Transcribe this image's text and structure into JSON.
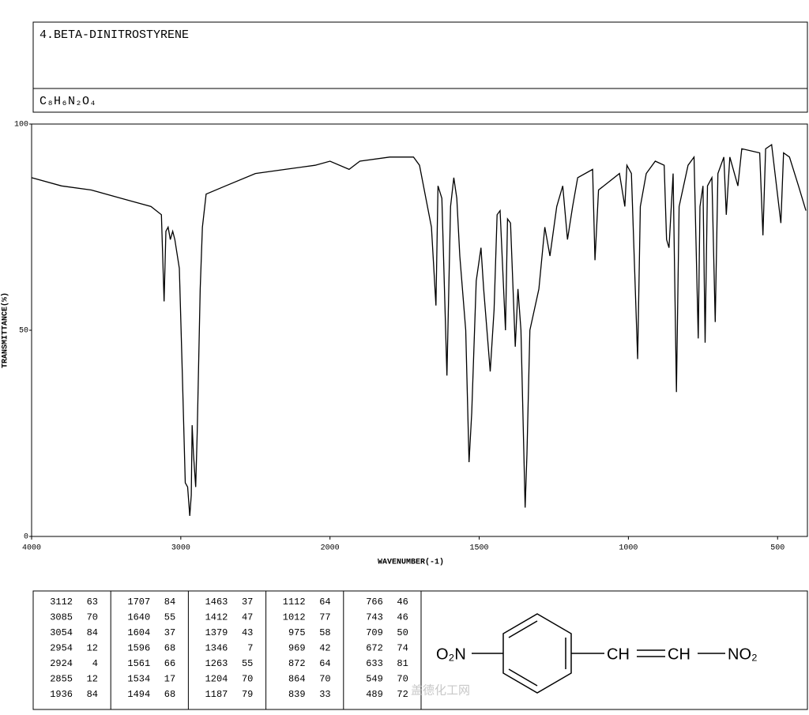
{
  "chart_data": {
    "type": "line",
    "title": "4.BETA-DINITROSTYRENE",
    "formula": "C₈H₆N₂O₄",
    "xlabel": "WAVENUMBER(-1)",
    "ylabel": "TRANSMITTANCE(%)",
    "color": "#000000",
    "xlim": [
      4000,
      400
    ],
    "xticks": [
      4000,
      3000,
      2000,
      1500,
      1000,
      500
    ],
    "ylim": [
      0,
      100
    ],
    "yticks": [
      0,
      50,
      100
    ],
    "x": [
      4000,
      3800,
      3600,
      3400,
      3200,
      3130,
      3112,
      3100,
      3085,
      3070,
      3054,
      3040,
      3010,
      2990,
      2970,
      2954,
      2940,
      2930,
      2924,
      2915,
      2900,
      2890,
      2870,
      2855,
      2830,
      2700,
      2500,
      2300,
      2100,
      2000,
      1936,
      1900,
      1800,
      1720,
      1700,
      1660,
      1645,
      1638,
      1625,
      1608,
      1596,
      1585,
      1575,
      1565,
      1545,
      1534,
      1525,
      1510,
      1494,
      1485,
      1463,
      1450,
      1440,
      1430,
      1412,
      1405,
      1395,
      1379,
      1370,
      1360,
      1346,
      1340,
      1330,
      1300,
      1280,
      1263,
      1240,
      1220,
      1204,
      1187,
      1170,
      1120,
      1112,
      1100,
      1030,
      1012,
      1005,
      990,
      969,
      960,
      940,
      910,
      880,
      872,
      864,
      850,
      839,
      830,
      800,
      780,
      766,
      760,
      750,
      743,
      735,
      720,
      709,
      700,
      680,
      672,
      660,
      633,
      620,
      560,
      549,
      540,
      520,
      489,
      480,
      460,
      430,
      405
    ],
    "values": [
      87,
      85,
      84,
      82,
      80,
      78,
      57,
      74,
      75,
      72,
      74,
      72,
      65,
      40,
      13,
      12,
      5,
      10,
      27,
      20,
      12,
      25,
      60,
      75,
      83,
      85,
      88,
      89,
      90,
      91,
      89,
      91,
      92,
      92,
      90,
      75,
      56,
      85,
      82,
      39,
      80,
      87,
      82,
      68,
      50,
      18,
      30,
      62,
      70,
      60,
      40,
      55,
      78,
      79,
      50,
      77,
      76,
      46,
      60,
      50,
      7,
      20,
      50,
      60,
      75,
      68,
      80,
      85,
      72,
      80,
      87,
      89,
      67,
      84,
      88,
      80,
      90,
      88,
      43,
      80,
      88,
      91,
      90,
      72,
      70,
      88,
      35,
      80,
      90,
      92,
      48,
      80,
      85,
      47,
      85,
      87,
      52,
      88,
      92,
      78,
      92,
      85,
      94,
      93,
      73,
      94,
      95,
      76,
      93,
      92,
      85,
      79
    ]
  },
  "peak_table": {
    "columns": [
      [
        [
          3112,
          63
        ],
        [
          3085,
          70
        ],
        [
          3054,
          84
        ],
        [
          2954,
          12
        ],
        [
          2924,
          4
        ],
        [
          2855,
          12
        ],
        [
          1936,
          84
        ]
      ],
      [
        [
          1707,
          84
        ],
        [
          1640,
          55
        ],
        [
          1604,
          37
        ],
        [
          1596,
          68
        ],
        [
          1561,
          66
        ],
        [
          1534,
          17
        ],
        [
          1494,
          68
        ]
      ],
      [
        [
          1463,
          37
        ],
        [
          1412,
          47
        ],
        [
          1379,
          43
        ],
        [
          1346,
          7
        ],
        [
          1263,
          55
        ],
        [
          1204,
          70
        ],
        [
          1187,
          79
        ]
      ],
      [
        [
          1112,
          64
        ],
        [
          1012,
          77
        ],
        [
          975,
          58
        ],
        [
          969,
          42
        ],
        [
          872,
          64
        ],
        [
          864,
          70
        ],
        [
          839,
          33
        ]
      ],
      [
        [
          766,
          46
        ],
        [
          743,
          46
        ],
        [
          709,
          50
        ],
        [
          672,
          74
        ],
        [
          633,
          81
        ],
        [
          549,
          70
        ],
        [
          489,
          72
        ]
      ]
    ]
  },
  "structure": {
    "left_group": "O₂N",
    "ch_1": "CH",
    "ch_2": "CH",
    "right_group": "NO₂"
  },
  "watermark": "盖德化工网"
}
